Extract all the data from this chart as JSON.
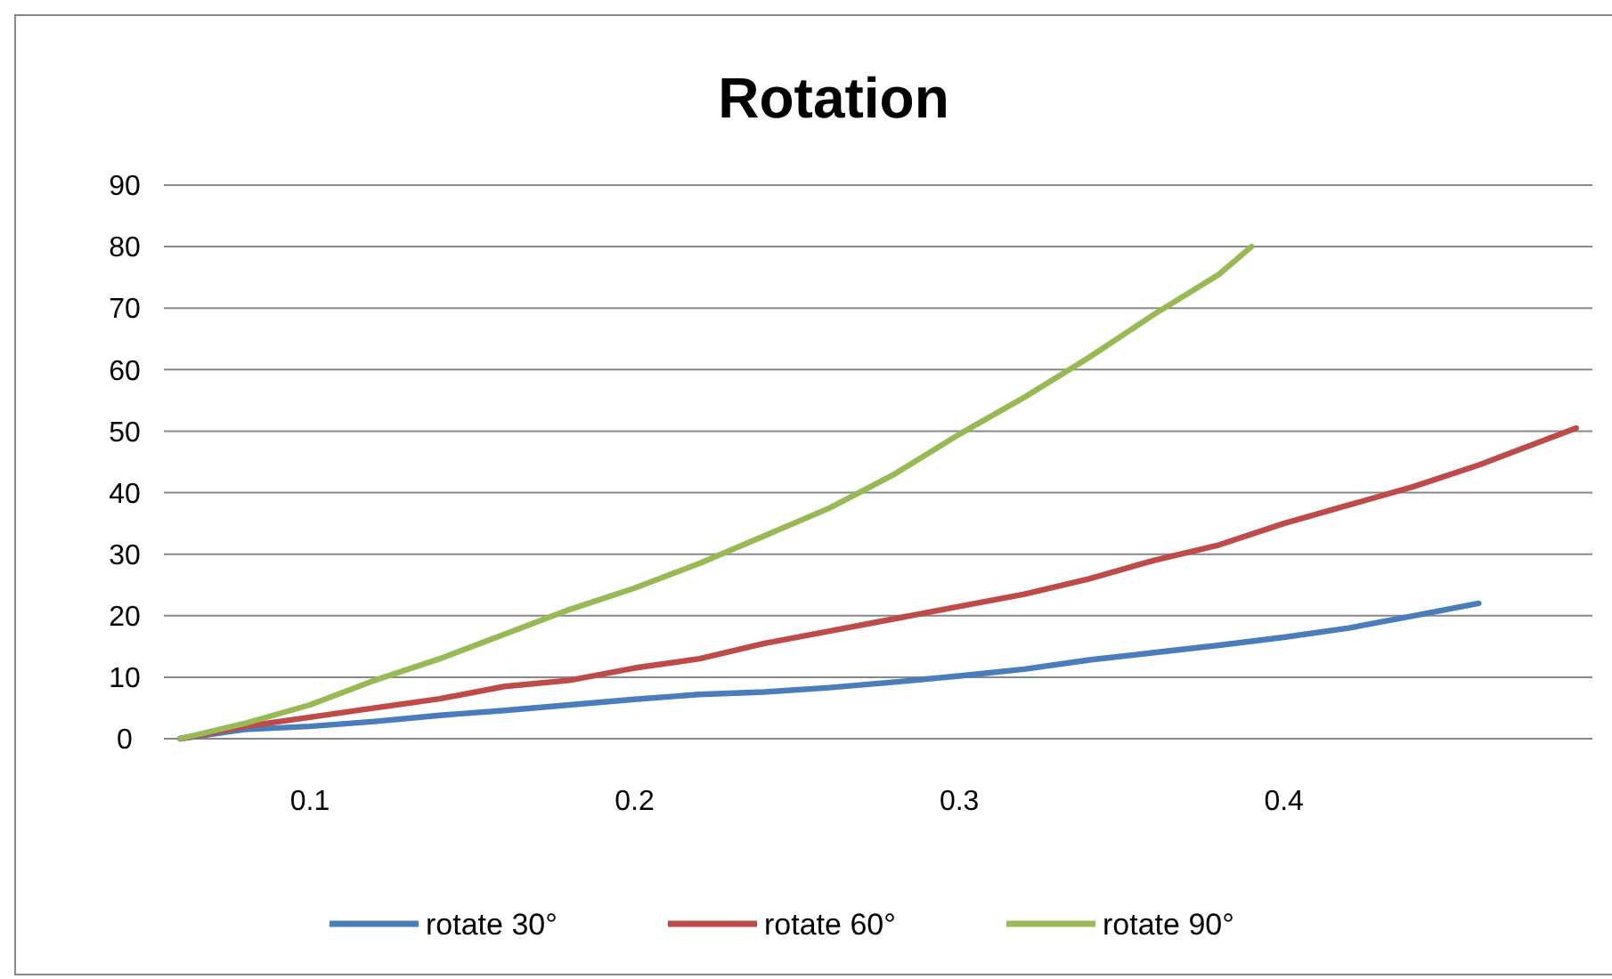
{
  "chart_data": {
    "type": "line",
    "title": "Rotation",
    "xlim": [
      0.055,
      0.495
    ],
    "xticks": [
      0.1,
      0.2,
      0.3,
      0.4
    ],
    "ylim": [
      0,
      90
    ],
    "yticks": [
      0,
      10,
      20,
      30,
      40,
      50,
      60,
      70,
      80,
      90
    ],
    "grid": "y",
    "legend": "bottom",
    "marker": "none",
    "line_style": "solid",
    "series": [
      {
        "name": "rotate 30°",
        "color": "#4a7ebb",
        "x": [
          0.06,
          0.08,
          0.1,
          0.12,
          0.14,
          0.16,
          0.18,
          0.2,
          0.22,
          0.24,
          0.26,
          0.28,
          0.3,
          0.32,
          0.34,
          0.36,
          0.38,
          0.4,
          0.42,
          0.44,
          0.46
        ],
        "values": [
          0,
          1.5,
          2,
          2.8,
          3.8,
          4.6,
          5.5,
          6.4,
          7.2,
          7.6,
          8.3,
          9.2,
          10.2,
          11.3,
          12.8,
          14,
          15.2,
          16.5,
          18,
          20,
          22
        ]
      },
      {
        "name": "rotate 60°",
        "color": "#be4b48",
        "x": [
          0.06,
          0.08,
          0.1,
          0.12,
          0.14,
          0.16,
          0.18,
          0.2,
          0.22,
          0.24,
          0.26,
          0.28,
          0.3,
          0.32,
          0.34,
          0.36,
          0.38,
          0.4,
          0.42,
          0.44,
          0.46,
          0.49
        ],
        "values": [
          0,
          2,
          3.5,
          5,
          6.5,
          8.5,
          9.5,
          11.5,
          13,
          15.5,
          17.5,
          19.5,
          21.5,
          23.5,
          26,
          29,
          31.5,
          35,
          38,
          41,
          44.5,
          50.5
        ]
      },
      {
        "name": "rotate 90°",
        "color": "#98b954",
        "x": [
          0.06,
          0.08,
          0.1,
          0.12,
          0.14,
          0.16,
          0.18,
          0.2,
          0.22,
          0.24,
          0.26,
          0.28,
          0.3,
          0.32,
          0.34,
          0.36,
          0.38,
          0.39
        ],
        "values": [
          0,
          2.5,
          5.5,
          9.5,
          13,
          17,
          21,
          24.5,
          28.5,
          33,
          37.5,
          43,
          49.5,
          55.5,
          62,
          69,
          75.5,
          80
        ]
      }
    ]
  }
}
